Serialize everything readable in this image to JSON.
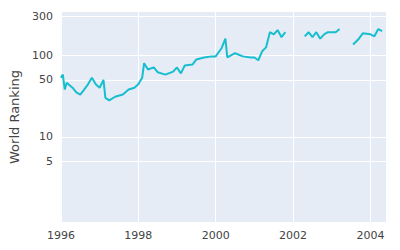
{
  "chart_data": {
    "type": "line",
    "y_label": "World Ranking",
    "log": "y",
    "grid": true,
    "color": "#17becf",
    "x": [
      1996.0,
      1996.05,
      1996.1,
      1996.15,
      1996.3,
      1996.4,
      1996.5,
      1996.6,
      1996.7,
      1996.8,
      1996.9,
      1997.0,
      1997.1,
      1997.15,
      1997.25,
      1997.4,
      1997.6,
      1997.75,
      1997.9,
      1998.0,
      1998.1,
      1998.15,
      1998.25,
      1998.4,
      1998.5,
      1998.7,
      1998.9,
      1999.0,
      1999.1,
      1999.2,
      1999.4,
      1999.5,
      1999.7,
      1999.9,
      2000.0,
      2000.15,
      2000.25,
      2000.3,
      2000.5,
      2000.7,
      2000.9,
      2001.0,
      2001.1,
      2001.2,
      2001.3,
      2001.4,
      2001.5,
      2001.6,
      2001.7,
      2001.8,
      2002.0,
      2002.3,
      2002.4,
      2002.5,
      2002.6,
      2002.7,
      2002.8,
      2002.9,
      2003.1,
      2003.2,
      2003.4,
      2003.55,
      2003.7,
      2003.8,
      2004.0,
      2004.1,
      2004.2,
      2004.3
    ],
    "values": [
      53,
      58,
      38,
      46,
      40,
      35,
      33,
      38,
      44,
      53,
      44,
      40,
      50,
      30,
      28,
      31,
      33,
      38,
      40,
      44,
      53,
      80,
      67,
      71,
      62,
      58,
      63,
      71,
      60,
      75,
      77,
      89,
      94,
      97,
      97,
      122,
      160,
      94,
      106,
      97,
      94,
      94,
      87,
      112,
      125,
      192,
      181,
      204,
      167,
      192,
      null,
      171,
      192,
      167,
      192,
      160,
      181,
      192,
      192,
      210,
      null,
      136,
      160,
      186,
      181,
      171,
      210,
      198
    ],
    "xlim": [
      1996,
      2004.4
    ],
    "xticks": [
      1996,
      1998,
      2000,
      2002,
      2004
    ],
    "ylim": [
      0.9,
      340
    ],
    "yticks": [
      5,
      10,
      50,
      100,
      300
    ]
  }
}
